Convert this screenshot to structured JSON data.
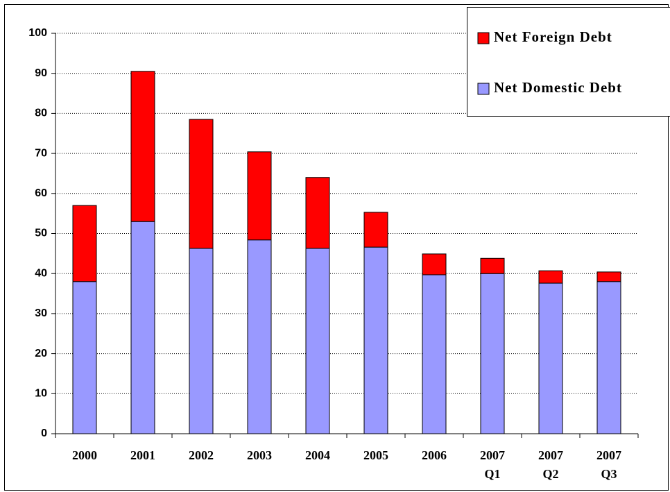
{
  "chart_data": {
    "type": "stacked_bar",
    "categories": [
      "2000",
      "2001",
      "2002",
      "2003",
      "2004",
      "2005",
      "2006",
      "2007 Q1",
      "2007 Q2",
      "2007 Q3"
    ],
    "series": [
      {
        "name": "Net Domestic Debt",
        "color": "#9999ff",
        "values": [
          38,
          53,
          46.3,
          48.4,
          46.3,
          46.6,
          39.7,
          40,
          37.6,
          38
        ]
      },
      {
        "name": "Net Foreign Debt",
        "color": "#ff0000",
        "values": [
          19,
          37.5,
          32.2,
          22,
          17.7,
          8.7,
          5.2,
          3.8,
          3.1,
          2.4
        ]
      }
    ],
    "ylim": [
      0,
      100
    ],
    "yticks": [
      0,
      10,
      20,
      30,
      40,
      50,
      60,
      70,
      80,
      90,
      100
    ],
    "grid": true,
    "legend": "top-right"
  }
}
